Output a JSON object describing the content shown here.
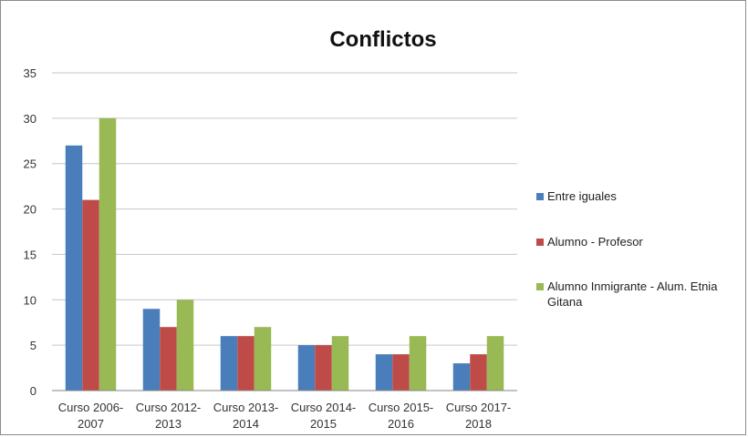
{
  "chart_data": {
    "type": "bar",
    "title": "Conflictos",
    "categories": [
      [
        "Curso 2006-",
        "2007"
      ],
      [
        "Curso 2012-",
        "2013"
      ],
      [
        "Curso 2013-",
        "2014"
      ],
      [
        "Curso 2014-",
        "2015"
      ],
      [
        "Curso 2015-",
        "2016"
      ],
      [
        "Curso 2017-",
        "2018"
      ]
    ],
    "series": [
      {
        "name": "Entre iguales",
        "color": "#4a7ebb",
        "values": [
          27,
          9,
          6,
          5,
          4,
          3
        ]
      },
      {
        "name": "Alumno - Profesor",
        "color": "#be4b48",
        "values": [
          21,
          7,
          6,
          5,
          4,
          4
        ]
      },
      {
        "name": "Alumno Inmigrante - Alum. Etnia Gitana",
        "color": "#98b954",
        "values": [
          30,
          10,
          7,
          6,
          6,
          6
        ]
      }
    ],
    "ylim": [
      0,
      35
    ],
    "yticks": [
      0,
      5,
      10,
      15,
      20,
      25,
      30,
      35
    ],
    "grid": true,
    "legend_position": "right"
  }
}
